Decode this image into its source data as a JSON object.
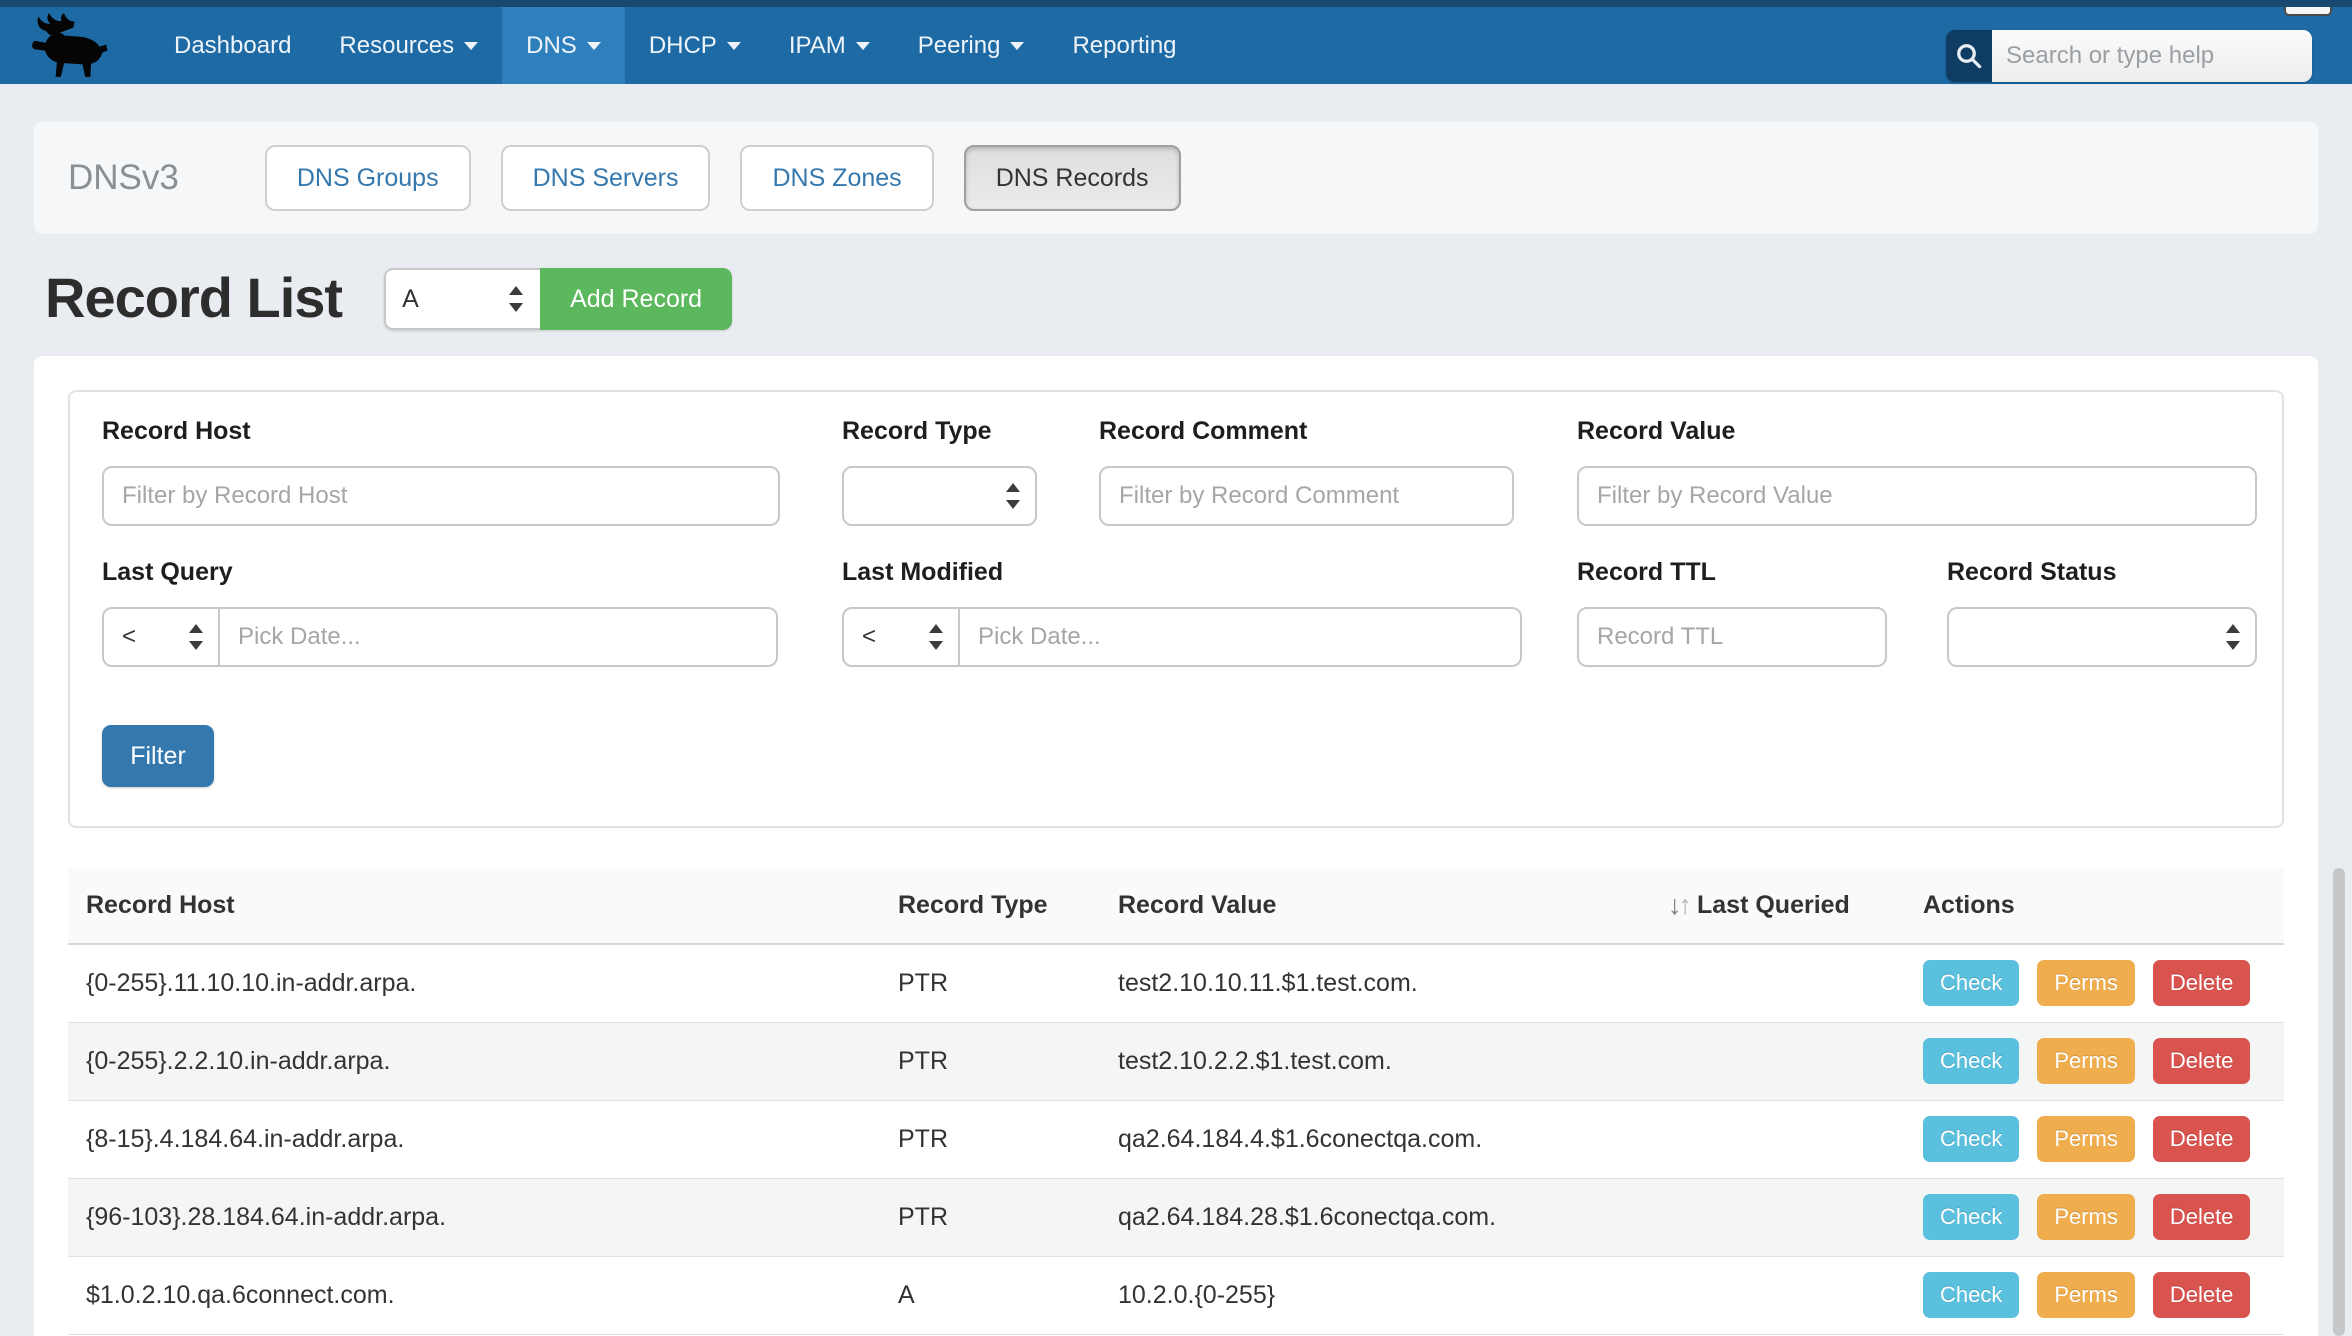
{
  "colors": {
    "navbar_bg": "#1d6aa5",
    "navbar_top": "#17486f",
    "navbar_active": "#2e80bd",
    "search_btn_bg": "#0e3c63",
    "page_bg": "#e9edf1",
    "subnav_bg": "#f6f7f8",
    "accent_blue": "#3478ae",
    "green": "#5cb85c",
    "check": "#5bc0de",
    "perms": "#f0ad4e",
    "delete": "#d9534f"
  },
  "navbar": {
    "logo": "moose-logo",
    "items": [
      {
        "label": "Dashboard",
        "caret": false,
        "active": false
      },
      {
        "label": "Resources",
        "caret": true,
        "active": false
      },
      {
        "label": "DNS",
        "caret": true,
        "active": true
      },
      {
        "label": "DHCP",
        "caret": true,
        "active": false
      },
      {
        "label": "IPAM",
        "caret": true,
        "active": false
      },
      {
        "label": "Peering",
        "caret": true,
        "active": false
      },
      {
        "label": "Reporting",
        "caret": false,
        "active": false
      }
    ],
    "search_placeholder": "Search or type help"
  },
  "subnav": {
    "title": "DNSv3",
    "tabs": [
      {
        "label": "DNS Groups",
        "active": false
      },
      {
        "label": "DNS Servers",
        "active": false
      },
      {
        "label": "DNS Zones",
        "active": false
      },
      {
        "label": "DNS Records",
        "active": true
      }
    ]
  },
  "record_list": {
    "title": "Record List",
    "type_selected": "A",
    "add_button": "Add Record"
  },
  "filter": {
    "record_host": {
      "label": "Record Host",
      "placeholder": "Filter by Record Host",
      "value": ""
    },
    "record_type": {
      "label": "Record Type",
      "value": ""
    },
    "record_comment": {
      "label": "Record Comment",
      "placeholder": "Filter by Record Comment",
      "value": ""
    },
    "record_value": {
      "label": "Record Value",
      "placeholder": "Filter by Record Value",
      "value": ""
    },
    "last_query": {
      "label": "Last Query",
      "operator": "<",
      "placeholder": "Pick Date...",
      "value": ""
    },
    "last_modified": {
      "label": "Last Modified",
      "operator": "<",
      "placeholder": "Pick Date...",
      "value": ""
    },
    "record_ttl": {
      "label": "Record TTL",
      "placeholder": "Record TTL",
      "value": ""
    },
    "record_status": {
      "label": "Record Status",
      "value": ""
    },
    "submit_label": "Filter"
  },
  "table": {
    "headers": [
      "Record Host",
      "Record Type",
      "Record Value",
      "Last Queried",
      "Actions"
    ],
    "action_labels": [
      "Check",
      "Perms",
      "Delete"
    ],
    "rows": [
      {
        "host": "{0-255}.11.10.10.in-addr.arpa.",
        "type": "PTR",
        "value": "test2.10.10.11.$1.test.com.",
        "last_queried": ""
      },
      {
        "host": "{0-255}.2.2.10.in-addr.arpa.",
        "type": "PTR",
        "value": "test2.10.2.2.$1.test.com.",
        "last_queried": ""
      },
      {
        "host": "{8-15}.4.184.64.in-addr.arpa.",
        "type": "PTR",
        "value": "qa2.64.184.4.$1.6conectqa.com.",
        "last_queried": ""
      },
      {
        "host": "{96-103}.28.184.64.in-addr.arpa.",
        "type": "PTR",
        "value": "qa2.64.184.28.$1.6conectqa.com.",
        "last_queried": ""
      },
      {
        "host": "$1.0.2.10.qa.6connect.com.",
        "type": "A",
        "value": "10.2.0.{0-255}",
        "last_queried": ""
      }
    ]
  }
}
